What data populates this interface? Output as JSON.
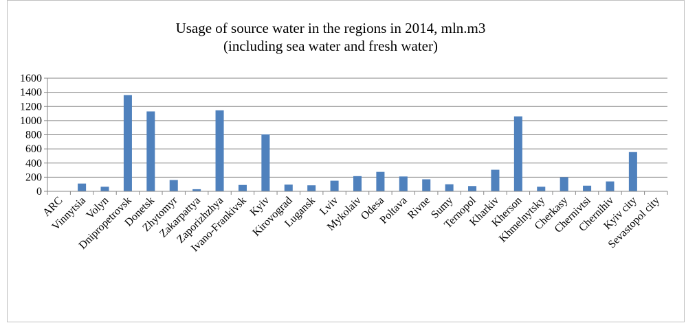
{
  "chart_data": {
    "type": "bar",
    "title": "Usage of source water in the regions in 2014, mln.m3",
    "subtitle": "(including sea water and fresh water)",
    "xlabel": "",
    "ylabel": "",
    "ylim": [
      0,
      1600
    ],
    "yticks": [
      0,
      200,
      400,
      600,
      800,
      1000,
      1200,
      1400,
      1600
    ],
    "grid": true,
    "legend": "none",
    "colors": {
      "bar": "#4f81bd",
      "grid": "#868686",
      "axis": "#868686"
    },
    "categories": [
      "ARC",
      "Vinnytsia",
      "Volyn",
      "Dnipropetrovsk",
      "Donetsk",
      "Zhytomyr",
      "Zakarpattya",
      "Zaporizhzhya",
      "Ivano-Frankivsk",
      "Kyiv",
      "Kirovograd",
      "Lugansk",
      "Lviv",
      "Mykolaiv",
      "Odesa",
      "Poltava",
      "Rivne",
      "Sumy",
      "Ternopol",
      "Kharkiv",
      "Kherson",
      "Khmelnytsky",
      "Cherkasy",
      "Chernivtsi",
      "Chernihiv",
      "Kyiv city",
      "Sevastopol city"
    ],
    "values": [
      0,
      110,
      65,
      1360,
      1130,
      160,
      30,
      1145,
      90,
      805,
      95,
      85,
      150,
      215,
      275,
      210,
      170,
      100,
      75,
      305,
      1060,
      65,
      200,
      80,
      140,
      555,
      0
    ]
  }
}
